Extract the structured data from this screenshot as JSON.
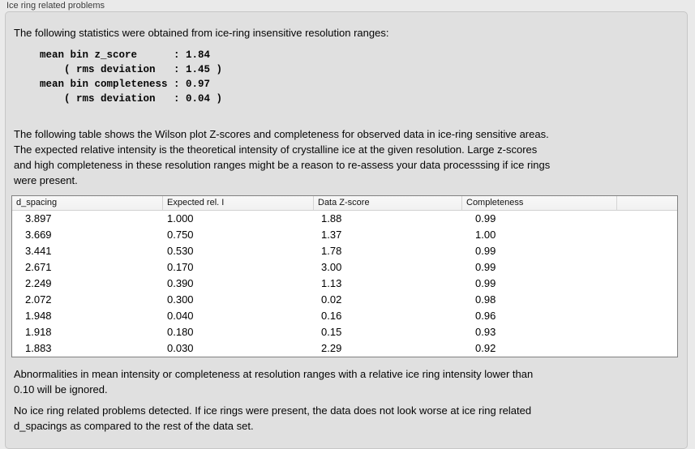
{
  "section": {
    "label": "Ice ring related problems"
  },
  "intro": "The following statistics were obtained from ice-ring insensitive resolution ranges:",
  "stats_block": "mean bin z_score      : 1.84\n    ( rms deviation   : 1.45 )\nmean bin completeness : 0.97\n    ( rms deviation   : 0.04 )",
  "stats_values": {
    "mean_bin_z_score": "1.84",
    "z_score_rms_deviation": "1.45",
    "mean_bin_completeness": "0.97",
    "completeness_rms_deviation": "0.04"
  },
  "description_lines": [
    "The following table shows the Wilson plot Z-scores and completeness for observed data in ice-ring sensitive areas.",
    "The expected relative intensity is the theoretical intensity of crystalline ice at the given resolution. Large z-scores",
    "and high completeness in these resolution ranges might be a reason to re-assess your data processsing if ice rings",
    "were present."
  ],
  "table": {
    "columns": [
      "d_spacing",
      "Expected rel. I",
      "Data Z-score",
      "Completeness",
      ""
    ],
    "rows": [
      [
        "3.897",
        "1.000",
        "1.88",
        "0.99"
      ],
      [
        "3.669",
        "0.750",
        "1.37",
        "1.00"
      ],
      [
        "3.441",
        "0.530",
        "1.78",
        "0.99"
      ],
      [
        "2.671",
        "0.170",
        "3.00",
        "0.99"
      ],
      [
        "2.249",
        "0.390",
        "1.13",
        "0.99"
      ],
      [
        "2.072",
        "0.300",
        "0.02",
        "0.98"
      ],
      [
        "1.948",
        "0.040",
        "0.16",
        "0.96"
      ],
      [
        "1.918",
        "0.180",
        "0.15",
        "0.93"
      ],
      [
        "1.883",
        "0.030",
        "2.29",
        "0.92"
      ]
    ]
  },
  "ignore_note_lines": [
    "Abnormalities in mean intensity or completeness at resolution ranges with a relative ice ring intensity lower than",
    "0.10 will be ignored."
  ],
  "conclusion_lines": [
    "No ice ring related problems detected. If ice rings were present, the data does not look worse at ice ring related",
    "d_spacings as compared to the rest of the data set."
  ],
  "colors": {
    "window_background": "#eaeaea",
    "panel_background": "#e0e0e0",
    "panel_border": "#c6c6c6",
    "table_background": "#ffffff",
    "table_border": "#818181",
    "header_background": "#f5f5f5",
    "text": "#050505"
  }
}
